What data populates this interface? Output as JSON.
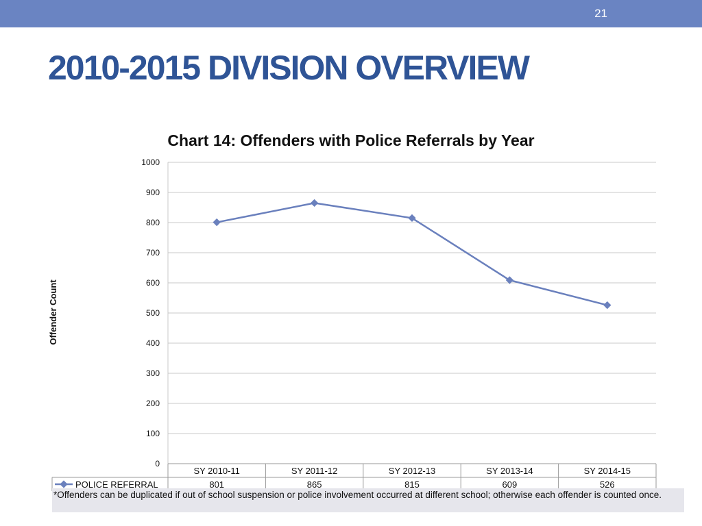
{
  "slide": {
    "page_number": "21",
    "title": "2010-2015 DIVISION OVERVIEW"
  },
  "chart_data": {
    "type": "line",
    "title": "Chart 14: Offenders with  Police Referrals by Year",
    "xlabel": "",
    "ylabel": "Offender Count",
    "ylim": [
      0,
      1000
    ],
    "yticks": [
      "0",
      "100",
      "200",
      "300",
      "400",
      "500",
      "600",
      "700",
      "800",
      "900",
      "1000"
    ],
    "grid": true,
    "categories": [
      "SY 2010-11",
      "SY 2011-12",
      "SY 2012-13",
      "SY 2013-14",
      "SY 2014-15"
    ],
    "series": [
      {
        "name": "POLICE REFERRAL",
        "values": [
          801,
          865,
          815,
          609,
          526
        ],
        "value_labels": [
          "801",
          "865",
          "815",
          "609",
          "526"
        ]
      }
    ],
    "data_table": true
  },
  "footnote": "*Offenders can be duplicated if out of school suspension or police involvement occurred at different school; otherwise each offender is counted once.",
  "colors": {
    "header_bar": "#6a84c2",
    "title": "#2f5496",
    "series_line": "#6a80bd",
    "gridline": "#c8c8c8",
    "footnote_bg": "#e6e6ec"
  }
}
